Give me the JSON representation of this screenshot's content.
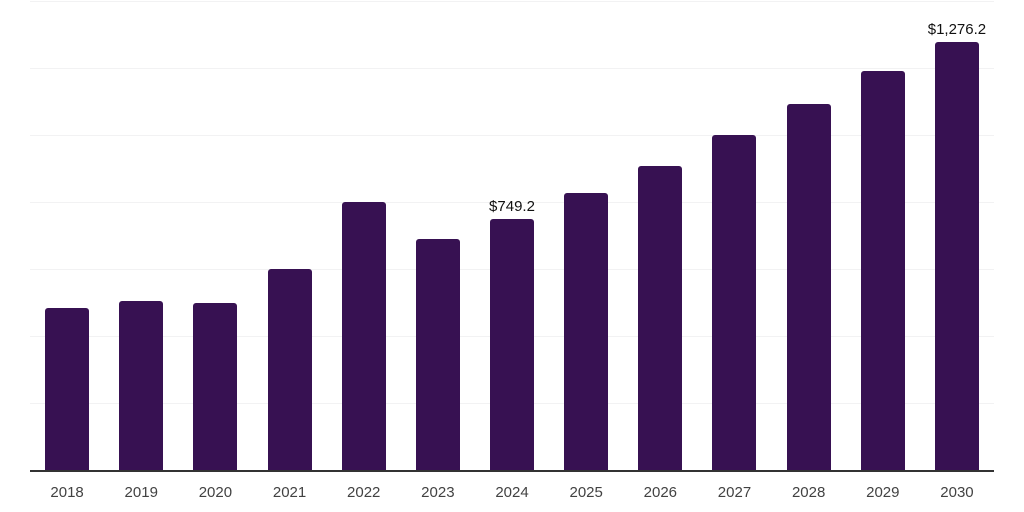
{
  "chart": {
    "background_color": "#ffffff",
    "bar_color": "#371152",
    "axis_line_color": "#333333",
    "gridline_color": "#f2f2f3",
    "tick_label_color": "#424242",
    "value_label_color": "#111111"
  },
  "chart_data": {
    "type": "bar",
    "title": "",
    "xlabel": "",
    "ylabel": "",
    "categories": [
      "2018",
      "2019",
      "2020",
      "2021",
      "2022",
      "2023",
      "2024",
      "2025",
      "2026",
      "2027",
      "2028",
      "2029",
      "2030"
    ],
    "values": [
      483,
      505,
      500,
      599,
      800,
      690,
      749.2,
      826,
      908,
      1000,
      1092,
      1190,
      1276.2
    ],
    "value_labels": [
      "",
      "",
      "",
      "",
      "",
      "",
      "$749.2",
      "",
      "",
      "",
      "",
      "",
      "$1,276.2"
    ],
    "ylim": [
      0,
      1400
    ],
    "gridline_step": 200,
    "grid": "horizontal-only",
    "y_axis_tick_labels_visible": false,
    "legend_position": "none"
  }
}
